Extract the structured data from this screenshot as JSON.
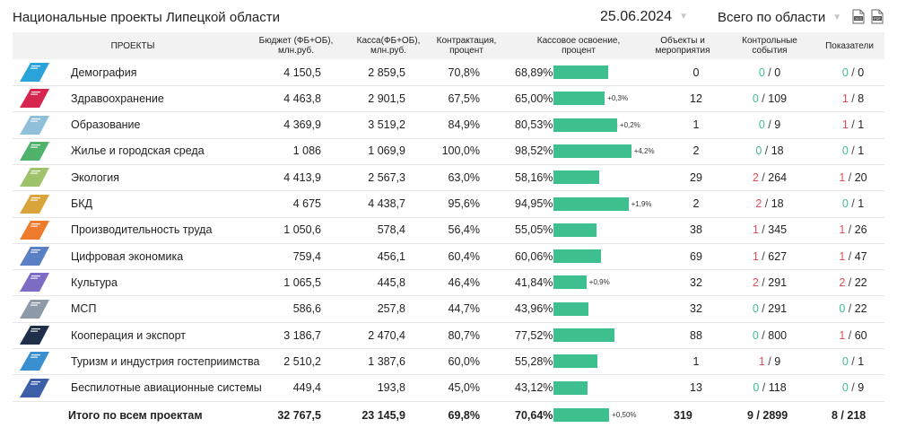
{
  "header": {
    "title": "Национальные проекты Липецкой области",
    "date": "25.06.2024",
    "region": "Всего по области",
    "export_icons": [
      "xlsx-file-icon",
      "pdf-file-icon"
    ]
  },
  "columns": {
    "projects": "ПРОЕКТЫ",
    "budget": "Бюджет (ФБ+ОБ), млн.руб.",
    "cash": "Касса(ФБ+ОБ), млн.руб.",
    "contract": "Контрактация, процент",
    "cash_exec": "Кассовое освоение, процент",
    "objects": "Объекты и мероприятия",
    "control": "Контрольные события",
    "indicators": "Показатели"
  },
  "colors": {
    "bar": "#3dbf8e",
    "good": "#3dbf8e",
    "bad": "#e24c5c"
  },
  "rows": [
    {
      "name": "Демография",
      "color": "#29a3d9",
      "budget": "4 150,5",
      "cash": "2 859,5",
      "contract": "70,8%",
      "exec": "68,89%",
      "exec_value": 68.89,
      "delta": "",
      "objects": "0",
      "ctrl_a": "0",
      "ctrl_b": "0",
      "ind_a": "0",
      "ind_b": "0"
    },
    {
      "name": "Здравоохранение",
      "color": "#d6264f",
      "budget": "4 463,8",
      "cash": "2 901,5",
      "contract": "67,5%",
      "exec": "65,00%",
      "exec_value": 65.0,
      "delta": "+0,3%",
      "objects": "12",
      "ctrl_a": "0",
      "ctrl_b": "109",
      "ind_a": "1",
      "ind_b": "8"
    },
    {
      "name": "Образование",
      "color": "#8fbfd9",
      "budget": "4 369,9",
      "cash": "3 519,2",
      "contract": "84,9%",
      "exec": "80,53%",
      "exec_value": 80.53,
      "delta": "+0,2%",
      "objects": "1",
      "ctrl_a": "0",
      "ctrl_b": "9",
      "ind_a": "1",
      "ind_b": "1"
    },
    {
      "name": "Жилье и городская среда",
      "color": "#4fb36b",
      "budget": "1 086",
      "cash": "1 069,9",
      "contract": "100,0%",
      "exec": "98,52%",
      "exec_value": 98.52,
      "delta": "+4,2%",
      "objects": "2",
      "ctrl_a": "0",
      "ctrl_b": "18",
      "ind_a": "0",
      "ind_b": "1"
    },
    {
      "name": "Экология",
      "color": "#9ec36b",
      "budget": "4 413,9",
      "cash": "2 567,3",
      "contract": "63,0%",
      "exec": "58,16%",
      "exec_value": 58.16,
      "delta": "",
      "objects": "29",
      "ctrl_a": "2",
      "ctrl_b": "264",
      "ind_a": "1",
      "ind_b": "20"
    },
    {
      "name": "БКД",
      "color": "#d9a53b",
      "budget": "4 675",
      "cash": "4 438,7",
      "contract": "95,6%",
      "exec": "94,95%",
      "exec_value": 94.95,
      "delta": "+1,9%",
      "objects": "2",
      "ctrl_a": "2",
      "ctrl_b": "18",
      "ind_a": "0",
      "ind_b": "1"
    },
    {
      "name": "Производительность труда",
      "color": "#ee7b2b",
      "budget": "1 050,6",
      "cash": "578,4",
      "contract": "56,4%",
      "exec": "55,05%",
      "exec_value": 55.05,
      "delta": "",
      "objects": "38",
      "ctrl_a": "1",
      "ctrl_b": "345",
      "ind_a": "1",
      "ind_b": "26"
    },
    {
      "name": "Цифровая экономика",
      "color": "#5b7fc4",
      "budget": "759,4",
      "cash": "456,1",
      "contract": "60,4%",
      "exec": "60,06%",
      "exec_value": 60.06,
      "delta": "",
      "objects": "69",
      "ctrl_a": "1",
      "ctrl_b": "627",
      "ind_a": "1",
      "ind_b": "47"
    },
    {
      "name": "Культура",
      "color": "#7e6bc4",
      "budget": "1 065,5",
      "cash": "445,8",
      "contract": "46,4%",
      "exec": "41,84%",
      "exec_value": 41.84,
      "delta": "+0,9%",
      "objects": "32",
      "ctrl_a": "2",
      "ctrl_b": "291",
      "ind_a": "2",
      "ind_b": "22"
    },
    {
      "name": "МСП",
      "color": "#8e9aa8",
      "budget": "586,6",
      "cash": "257,8",
      "contract": "44,7%",
      "exec": "43,96%",
      "exec_value": 43.96,
      "delta": "",
      "objects": "32",
      "ctrl_a": "0",
      "ctrl_b": "291",
      "ind_a": "0",
      "ind_b": "22"
    },
    {
      "name": "Кооперация и экспорт",
      "color": "#1f2f4a",
      "budget": "3 186,7",
      "cash": "2 470,4",
      "contract": "80,7%",
      "exec": "77,52%",
      "exec_value": 77.52,
      "delta": "",
      "objects": "88",
      "ctrl_a": "0",
      "ctrl_b": "800",
      "ind_a": "1",
      "ind_b": "60"
    },
    {
      "name": "Туризм и индустрия гостеприимства",
      "color": "#3a8fd0",
      "budget": "2 510,2",
      "cash": "1 387,6",
      "contract": "60,0%",
      "exec": "55,28%",
      "exec_value": 55.28,
      "delta": "",
      "objects": "1",
      "ctrl_a": "1",
      "ctrl_b": "9",
      "ind_a": "0",
      "ind_b": "1"
    },
    {
      "name": "Беспилотные авиационные системы",
      "color": "#3d5fa8",
      "budget": "449,4",
      "cash": "193,8",
      "contract": "45,0%",
      "exec": "43,12%",
      "exec_value": 43.12,
      "delta": "",
      "objects": "13",
      "ctrl_a": "0",
      "ctrl_b": "118",
      "ind_a": "0",
      "ind_b": "9"
    }
  ],
  "total": {
    "label": "Итого по всем проектам",
    "budget": "32 767,5",
    "cash": "23 145,9",
    "contract": "69,8%",
    "exec": "70,64%",
    "exec_value": 70.64,
    "delta": "+0,50%",
    "objects": "319",
    "control": "9 / 2899",
    "indicators": "8 / 218"
  }
}
